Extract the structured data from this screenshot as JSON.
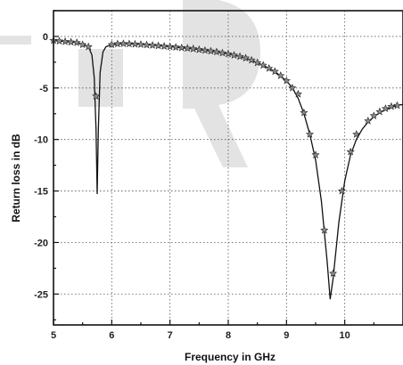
{
  "chart_data": {
    "type": "line",
    "title": "",
    "xlabel": "Frequency in GHz",
    "ylabel": "Return loss in dB",
    "xlim": [
      5,
      11
    ],
    "ylim": [
      -28,
      2.5
    ],
    "x_ticks": [
      5,
      6,
      7,
      8,
      9,
      10
    ],
    "y_ticks": [
      0,
      -5,
      -10,
      -15,
      -20,
      -25
    ],
    "grid": true,
    "series": [
      {
        "marker": "star",
        "color": "#111111",
        "line": [
          [
            5.0,
            -0.4
          ],
          [
            5.1,
            -0.45
          ],
          [
            5.2,
            -0.5
          ],
          [
            5.3,
            -0.55
          ],
          [
            5.4,
            -0.6
          ],
          [
            5.5,
            -0.75
          ],
          [
            5.6,
            -1.0
          ],
          [
            5.66,
            -1.8
          ],
          [
            5.7,
            -4.0
          ],
          [
            5.73,
            -9.0
          ],
          [
            5.75,
            -15.3
          ],
          [
            5.77,
            -9.0
          ],
          [
            5.8,
            -3.5
          ],
          [
            5.85,
            -1.5
          ],
          [
            5.9,
            -1.0
          ],
          [
            6.0,
            -0.8
          ],
          [
            6.2,
            -0.7
          ],
          [
            6.4,
            -0.75
          ],
          [
            6.6,
            -0.8
          ],
          [
            6.8,
            -0.9
          ],
          [
            7.0,
            -1.0
          ],
          [
            7.2,
            -1.1
          ],
          [
            7.4,
            -1.2
          ],
          [
            7.6,
            -1.35
          ],
          [
            7.8,
            -1.5
          ],
          [
            8.0,
            -1.7
          ],
          [
            8.2,
            -1.95
          ],
          [
            8.4,
            -2.3
          ],
          [
            8.6,
            -2.8
          ],
          [
            8.8,
            -3.4
          ],
          [
            9.0,
            -4.3
          ],
          [
            9.1,
            -5.0
          ],
          [
            9.2,
            -6.0
          ],
          [
            9.3,
            -7.5
          ],
          [
            9.4,
            -9.5
          ],
          [
            9.5,
            -12.0
          ],
          [
            9.6,
            -16.0
          ],
          [
            9.7,
            -22.0
          ],
          [
            9.75,
            -25.5
          ],
          [
            9.8,
            -23.5
          ],
          [
            9.9,
            -18.0
          ],
          [
            10.0,
            -14.0
          ],
          [
            10.1,
            -11.5
          ],
          [
            10.2,
            -10.0
          ],
          [
            10.3,
            -9.0
          ],
          [
            10.4,
            -8.3
          ],
          [
            10.5,
            -7.8
          ],
          [
            10.6,
            -7.4
          ],
          [
            10.7,
            -7.1
          ],
          [
            10.8,
            -6.9
          ],
          [
            10.9,
            -6.7
          ],
          [
            11.0,
            -6.6
          ]
        ],
        "markers": [
          [
            5.0,
            -0.4
          ],
          [
            5.1,
            -0.45
          ],
          [
            5.2,
            -0.5
          ],
          [
            5.3,
            -0.55
          ],
          [
            5.4,
            -0.6
          ],
          [
            5.5,
            -0.8
          ],
          [
            5.6,
            -1.0
          ],
          [
            5.73,
            -5.8
          ],
          [
            6.0,
            -0.8
          ],
          [
            6.1,
            -0.72
          ],
          [
            6.2,
            -0.7
          ],
          [
            6.3,
            -0.72
          ],
          [
            6.4,
            -0.75
          ],
          [
            6.5,
            -0.78
          ],
          [
            6.6,
            -0.82
          ],
          [
            6.7,
            -0.86
          ],
          [
            6.8,
            -0.9
          ],
          [
            6.9,
            -0.95
          ],
          [
            7.0,
            -1.0
          ],
          [
            7.1,
            -1.05
          ],
          [
            7.2,
            -1.1
          ],
          [
            7.3,
            -1.15
          ],
          [
            7.4,
            -1.2
          ],
          [
            7.5,
            -1.28
          ],
          [
            7.6,
            -1.35
          ],
          [
            7.7,
            -1.42
          ],
          [
            7.8,
            -1.5
          ],
          [
            7.9,
            -1.6
          ],
          [
            8.0,
            -1.7
          ],
          [
            8.1,
            -1.82
          ],
          [
            8.2,
            -1.95
          ],
          [
            8.3,
            -2.1
          ],
          [
            8.4,
            -2.3
          ],
          [
            8.5,
            -2.55
          ],
          [
            8.6,
            -2.8
          ],
          [
            8.7,
            -3.1
          ],
          [
            8.8,
            -3.4
          ],
          [
            8.9,
            -3.8
          ],
          [
            9.0,
            -4.3
          ],
          [
            9.1,
            -5.0
          ],
          [
            9.2,
            -5.6
          ],
          [
            9.3,
            -7.4
          ],
          [
            9.4,
            -9.5
          ],
          [
            9.5,
            -11.5
          ],
          [
            9.65,
            -18.8
          ],
          [
            9.8,
            -23.0
          ],
          [
            9.95,
            -15.0
          ],
          [
            10.1,
            -11.2
          ],
          [
            10.2,
            -9.5
          ],
          [
            10.4,
            -8.2
          ],
          [
            10.5,
            -7.7
          ],
          [
            10.6,
            -7.3
          ],
          [
            10.7,
            -7.0
          ],
          [
            10.8,
            -6.8
          ],
          [
            10.9,
            -6.7
          ]
        ]
      }
    ]
  }
}
